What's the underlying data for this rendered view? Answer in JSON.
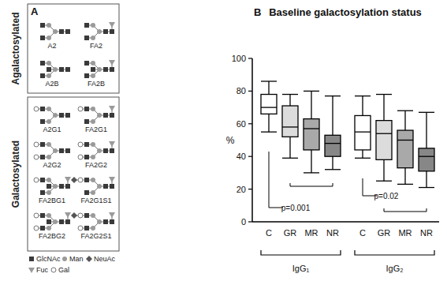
{
  "panel_a": {
    "label": "A",
    "groups": [
      {
        "title": "Agalactosylated",
        "glycans": [
          "A2",
          "FA2",
          "A2B",
          "FA2B"
        ]
      },
      {
        "title": "Galactosylated",
        "glycans": [
          "A2G1",
          "FA2G1",
          "A2G2",
          "FA2G2",
          "FA2BG1",
          "FA2G1S1",
          "FA2BG2",
          "FA2G2S1"
        ]
      }
    ],
    "legend": [
      {
        "label": "GlcNAc",
        "marker": "square"
      },
      {
        "label": "Man",
        "marker": "circle"
      },
      {
        "label": "NeuAc",
        "marker": "diamond"
      },
      {
        "label": "Fuc",
        "marker": "triangle"
      },
      {
        "label": "Gal",
        "marker": "open-circle"
      }
    ]
  },
  "chart_data": {
    "type": "box",
    "panel_label": "B",
    "title": "Baseline galactosylation status",
    "y_label": "%",
    "categories": [
      "C",
      "GR",
      "MR",
      "NR"
    ],
    "series": [
      {
        "name": "IgG₁",
        "colors": [
          "#ffffff",
          "#dcdcdc",
          "#a9a9a9",
          "#878787"
        ],
        "min": [
          55,
          39,
          30,
          32
        ],
        "q1": [
          66,
          52,
          44,
          40
        ],
        "median": [
          70,
          58,
          57,
          48
        ],
        "q3": [
          78,
          71,
          63,
          53
        ],
        "max": [
          86,
          78,
          80,
          77
        ]
      },
      {
        "name": "IgG₂",
        "colors": [
          "#ffffff",
          "#dcdcdc",
          "#a9a9a9",
          "#878787"
        ],
        "min": [
          39,
          25,
          23,
          21
        ],
        "q1": [
          44,
          38,
          33,
          31
        ],
        "median": [
          55,
          54,
          50,
          40
        ],
        "q3": [
          65,
          62,
          56,
          45
        ],
        "max": [
          77,
          78,
          68,
          67
        ]
      }
    ],
    "annotations": [
      "p=0.001",
      "p=0.02"
    ],
    "ylim": [
      0,
      100
    ],
    "yticks": [
      0,
      20,
      40,
      60,
      80,
      100
    ]
  }
}
